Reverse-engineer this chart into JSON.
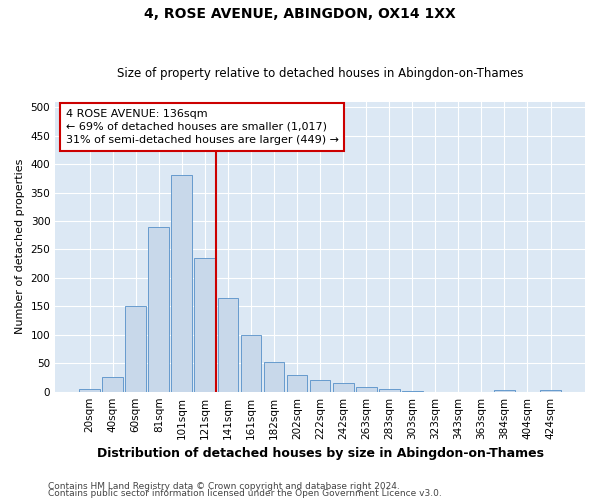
{
  "title": "4, ROSE AVENUE, ABINGDON, OX14 1XX",
  "subtitle": "Size of property relative to detached houses in Abingdon-on-Thames",
  "xlabel": "Distribution of detached houses by size in Abingdon-on-Thames",
  "ylabel": "Number of detached properties",
  "footnote1": "Contains HM Land Registry data © Crown copyright and database right 2024.",
  "footnote2": "Contains public sector information licensed under the Open Government Licence v3.0.",
  "bins": [
    "20sqm",
    "40sqm",
    "60sqm",
    "81sqm",
    "101sqm",
    "121sqm",
    "141sqm",
    "161sqm",
    "182sqm",
    "202sqm",
    "222sqm",
    "242sqm",
    "263sqm",
    "283sqm",
    "303sqm",
    "323sqm",
    "343sqm",
    "363sqm",
    "384sqm",
    "404sqm",
    "424sqm"
  ],
  "values": [
    5,
    25,
    150,
    290,
    380,
    235,
    165,
    100,
    52,
    30,
    20,
    16,
    8,
    4,
    2,
    0,
    0,
    0,
    3,
    0,
    3
  ],
  "bar_color": "#c8d8ea",
  "bar_edge_color": "#5590c8",
  "bar_edge_width": 0.6,
  "vline_color": "#cc0000",
  "vline_x": 5.5,
  "annotation_line1": "4 ROSE AVENUE: 136sqm",
  "annotation_line2": "← 69% of detached houses are smaller (1,017)",
  "annotation_line3": "31% of semi-detached houses are larger (449) →",
  "annotation_box_facecolor": "white",
  "annotation_box_edgecolor": "#cc0000",
  "ylim": [
    0,
    510
  ],
  "yticks": [
    0,
    50,
    100,
    150,
    200,
    250,
    300,
    350,
    400,
    450,
    500
  ],
  "background_color": "#dce8f4",
  "grid_color": "#ffffff",
  "title_fontsize": 10,
  "subtitle_fontsize": 8.5,
  "xlabel_fontsize": 9,
  "ylabel_fontsize": 8,
  "tick_fontsize": 7.5,
  "annotation_fontsize": 8,
  "footnote_fontsize": 6.5
}
